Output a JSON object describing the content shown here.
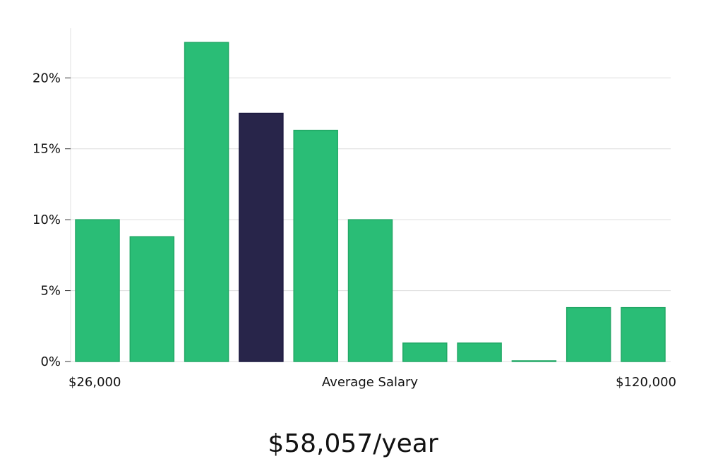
{
  "chart_data": {
    "type": "bar",
    "title": "",
    "xlabel": "Average Salary",
    "ylabel": "",
    "x_min_label": "$26,000",
    "x_max_label": "$120,000",
    "values": [
      10.0,
      8.8,
      22.5,
      17.5,
      16.3,
      10.0,
      1.3,
      1.3,
      0.0,
      3.8,
      3.8
    ],
    "highlight_index": 3,
    "ylim": [
      0,
      23.5
    ],
    "yticks": [
      0,
      5,
      10,
      15,
      20
    ],
    "ytick_format": "{v}%",
    "grid": true,
    "colors": {
      "bar": "#2abd76",
      "highlight": "#28254a",
      "grid": "#dddddd"
    }
  },
  "summary": {
    "salary_text": "$58,057/year"
  }
}
